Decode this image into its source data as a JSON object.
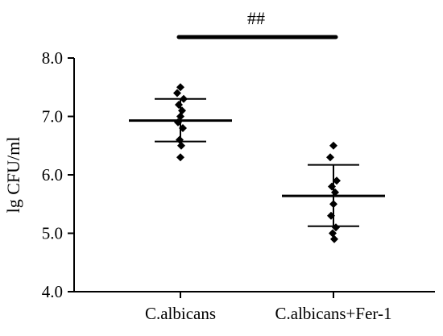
{
  "chart_data": {
    "type": "scatter",
    "ylabel": "lg CFU/ml",
    "ylim": [
      4.0,
      8.0
    ],
    "yticks": [
      "4.0",
      "5.0",
      "6.0",
      "7.0",
      "8.0"
    ],
    "categories": [
      "C.albicans",
      "C.albicans+Fer-1"
    ],
    "groups": [
      {
        "category": "C.albicans",
        "mean": 6.93,
        "upper": 7.3,
        "lower": 6.57,
        "points": [
          7.5,
          7.4,
          7.3,
          7.2,
          7.1,
          7.0,
          6.9,
          6.8,
          6.6,
          6.5,
          6.3
        ]
      },
      {
        "category": "C.albicans+Fer-1",
        "mean": 5.64,
        "upper": 6.17,
        "lower": 5.12,
        "points": [
          6.5,
          6.3,
          5.9,
          5.8,
          5.7,
          5.5,
          5.3,
          5.1,
          5.0,
          4.9
        ]
      }
    ],
    "significance": {
      "label": "##",
      "between": [
        "C.albicans",
        "C.albicans+Fer-1"
      ]
    },
    "colors": {
      "marks": "#000000",
      "axis": "#000000"
    }
  }
}
